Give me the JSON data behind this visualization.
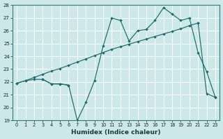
{
  "xlabel": "Humidex (Indice chaleur)",
  "background_color": "#cce8e8",
  "grid_color": "#b0d0d0",
  "line_color": "#1a6b6b",
  "ylim": [
    19,
    28
  ],
  "xlim": [
    -0.5,
    23.5
  ],
  "yticks": [
    19,
    20,
    21,
    22,
    23,
    24,
    25,
    26,
    27,
    28
  ],
  "xticks": [
    0,
    1,
    2,
    3,
    4,
    5,
    6,
    7,
    8,
    9,
    10,
    11,
    12,
    13,
    14,
    15,
    16,
    17,
    18,
    19,
    20,
    21,
    22,
    23
  ],
  "line_flat_x": [
    0,
    1,
    2,
    3,
    4,
    5,
    6
  ],
  "line_flat_y": [
    21.9,
    22.1,
    22.2,
    22.2,
    21.85,
    21.85,
    21.75
  ],
  "line_zigzag_x": [
    3,
    4,
    5,
    6,
    7,
    8,
    9,
    10,
    11,
    12,
    13,
    14,
    15,
    16,
    17,
    18,
    19,
    20,
    21,
    22,
    23
  ],
  "line_zigzag_y": [
    22.2,
    21.85,
    21.85,
    21.75,
    19.0,
    20.4,
    22.1,
    24.8,
    27.0,
    26.8,
    25.2,
    26.0,
    26.1,
    26.8,
    27.8,
    27.3,
    26.8,
    27.0,
    24.3,
    22.8,
    20.8
  ],
  "line_trend_x": [
    0,
    1,
    2,
    3,
    4,
    5,
    6,
    7,
    8,
    9,
    10,
    11,
    12,
    13,
    14,
    15,
    16,
    17,
    18,
    19,
    20,
    21,
    22,
    23
  ],
  "line_trend_y": [
    21.9,
    22.1,
    22.35,
    22.6,
    22.85,
    23.05,
    23.3,
    23.55,
    23.8,
    24.05,
    24.3,
    24.55,
    24.75,
    24.95,
    25.15,
    25.35,
    25.55,
    25.75,
    25.95,
    26.15,
    26.4,
    26.6,
    21.1,
    20.8
  ]
}
